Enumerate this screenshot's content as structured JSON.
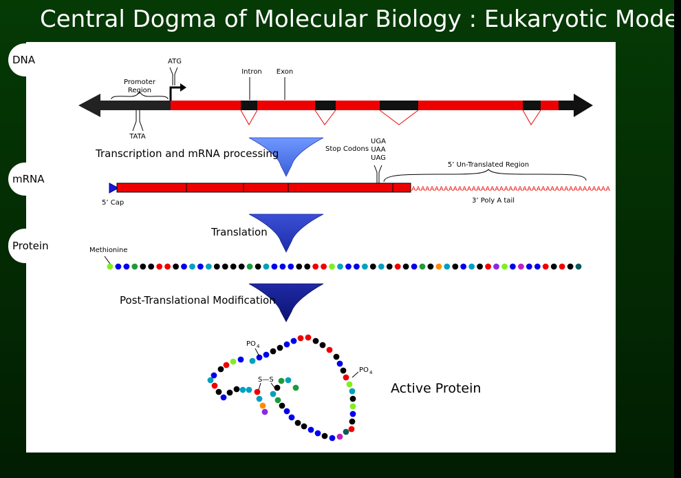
{
  "slide": {
    "title": "Central Dogma of Molecular Biology : Eukaryotic Mode"
  },
  "stages": {
    "dna": "DNA",
    "mrna": "mRNA",
    "protein": "Protein"
  },
  "dna": {
    "atg": "ATG",
    "promoter_line1": "Promoter",
    "promoter_line2": "Region",
    "tata": "TATA",
    "intron": "Intron",
    "exon": "Exon"
  },
  "processes": {
    "transcription": "Transcription and mRNA processing",
    "translation": "Translation",
    "ptm": "Post-Translational Modification"
  },
  "mrna": {
    "stop_codons_label": "Stop Codons",
    "stop_codons": [
      "UGA",
      "UAA",
      "UAG"
    ],
    "utr": "5’ Un-Translated Region",
    "cap": "5’ Cap",
    "polya_tail": "3’ Poly A tail",
    "polya_seq": "AAAAAAAAAAAAAAAAAAAAAAAAAAAAAAAAAAAAAAAAAAA"
  },
  "protein": {
    "methionine": "Methionine",
    "chain_colors": [
      "#7fef1f",
      "#0000ee",
      "#0000ee",
      "#1d9a3c",
      "#000000",
      "#000000",
      "#ee0000",
      "#ee0000",
      "#000000",
      "#0000ee",
      "#00a0c0",
      "#0000ee",
      "#00a0c0",
      "#000000",
      "#000000",
      "#000000",
      "#000000",
      "#1d9a3c",
      "#000000",
      "#00a0c0",
      "#0000ee",
      "#0000ee",
      "#0000ee",
      "#000000",
      "#000000",
      "#ee0000",
      "#ee0000",
      "#7fef1f",
      "#00a0c0",
      "#0000ee",
      "#0000ee",
      "#00a0c0",
      "#000000",
      "#00a0c0",
      "#000000",
      "#ee0000",
      "#000000",
      "#0000ee",
      "#1d9a3c",
      "#000000",
      "#ff8c00",
      "#00a0c0",
      "#000000",
      "#0000ee",
      "#00a0c0",
      "#000000",
      "#ee0000",
      "#8a2be2",
      "#7fef1f",
      "#0000ee",
      "#c020c0",
      "#0000ee",
      "#0000ee",
      "#ee0000",
      "#000000",
      "#ee0000",
      "#000000",
      "#0b5a5a"
    ],
    "active_label": "Active Protein",
    "po4_sub": "4",
    "po4_base": "PO",
    "disulfide": "S—S"
  },
  "colors": {
    "dna_black": "#222222",
    "dna_red": "#ee0000",
    "arrow_light": "#5a86f0",
    "arrow_mid": "#2b3fc4",
    "arrow_dark": "#141c8c",
    "background": "#043404"
  }
}
